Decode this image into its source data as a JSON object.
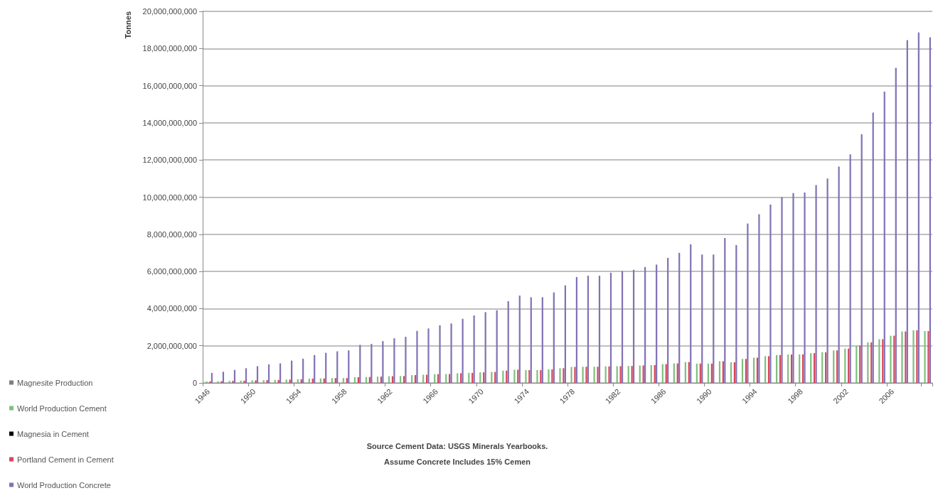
{
  "chart_data": {
    "type": "bar",
    "ylabel": "Tonnes",
    "annotations": [
      "Source Cement Data: USGS Minerals Yearbooks.",
      "Assume Concrete Includes 15% Cemen"
    ],
    "categories": [
      "1946",
      null,
      null,
      null,
      "1950",
      null,
      null,
      null,
      "1954",
      null,
      null,
      null,
      "1958",
      null,
      null,
      null,
      "1962",
      null,
      null,
      null,
      "1966",
      null,
      null,
      null,
      "1970",
      null,
      null,
      null,
      "1974",
      null,
      null,
      null,
      "1978",
      null,
      null,
      null,
      "1982",
      null,
      null,
      null,
      "1986",
      null,
      null,
      null,
      "1990",
      null,
      null,
      null,
      "1994",
      null,
      null,
      null,
      "1998",
      null,
      null,
      null,
      "2002",
      null,
      null,
      null,
      "2006",
      null,
      null,
      null
    ],
    "series": [
      {
        "name": "Magnesite Production",
        "color": "#7f7f7f",
        "values": [
          null,
          null,
          null,
          null,
          null,
          null,
          null,
          null,
          null,
          null,
          null,
          null,
          null,
          null,
          null,
          null,
          null,
          null,
          null,
          null,
          null,
          null,
          null,
          null,
          null,
          null,
          null,
          null,
          null,
          null,
          null,
          null,
          null,
          null,
          null,
          null,
          null,
          null,
          null,
          null,
          null,
          null,
          null,
          null,
          null,
          null,
          null,
          null,
          null,
          null,
          null,
          null,
          null,
          null,
          null,
          null,
          null,
          null,
          null,
          null,
          null,
          null,
          null,
          null
        ]
      },
      {
        "name": "World Production Cement",
        "color": "#7fbf7f",
        "values": [
          80000000,
          90000000,
          110000000,
          120000000,
          140000000,
          150000000,
          160000000,
          180000000,
          200000000,
          230000000,
          240000000,
          260000000,
          260000000,
          310000000,
          320000000,
          340000000,
          360000000,
          370000000,
          420000000,
          440000000,
          470000000,
          480000000,
          520000000,
          540000000,
          570000000,
          590000000,
          660000000,
          710000000,
          690000000,
          690000000,
          730000000,
          790000000,
          860000000,
          870000000,
          870000000,
          890000000,
          900000000,
          910000000,
          940000000,
          960000000,
          1010000000,
          1050000000,
          1120000000,
          1040000000,
          1040000000,
          1170000000,
          1110000000,
          1290000000,
          1360000000,
          1440000000,
          1500000000,
          1530000000,
          1540000000,
          1600000000,
          1650000000,
          1750000000,
          1850000000,
          2010000000,
          2180000000,
          2350000000,
          2540000000,
          2770000000,
          2830000000,
          2790000000
        ]
      },
      {
        "name": "Magnesia in Cement",
        "color": "#000000",
        "values": [
          null,
          null,
          null,
          null,
          null,
          null,
          null,
          null,
          null,
          null,
          null,
          null,
          null,
          null,
          null,
          null,
          null,
          null,
          null,
          null,
          null,
          null,
          null,
          null,
          null,
          null,
          null,
          null,
          null,
          null,
          null,
          null,
          null,
          null,
          null,
          null,
          null,
          null,
          null,
          null,
          null,
          null,
          null,
          null,
          null,
          null,
          null,
          null,
          null,
          null,
          null,
          null,
          null,
          null,
          null,
          null,
          null,
          null,
          null,
          null,
          null,
          null,
          null,
          null
        ]
      },
      {
        "name": "Portland Cement in Cement",
        "color": "#d9465a",
        "values": [
          80000000,
          90000000,
          110000000,
          120000000,
          140000000,
          150000000,
          160000000,
          180000000,
          200000000,
          230000000,
          240000000,
          260000000,
          260000000,
          310000000,
          320000000,
          340000000,
          360000000,
          370000000,
          420000000,
          440000000,
          470000000,
          480000000,
          520000000,
          540000000,
          570000000,
          590000000,
          660000000,
          710000000,
          690000000,
          690000000,
          730000000,
          790000000,
          860000000,
          870000000,
          870000000,
          890000000,
          900000000,
          910000000,
          940000000,
          960000000,
          1010000000,
          1050000000,
          1120000000,
          1040000000,
          1040000000,
          1170000000,
          1110000000,
          1290000000,
          1360000000,
          1440000000,
          1500000000,
          1530000000,
          1540000000,
          1600000000,
          1650000000,
          1750000000,
          1850000000,
          2010000000,
          2180000000,
          2350000000,
          2540000000,
          2770000000,
          2830000000,
          2790000000
        ]
      },
      {
        "name": "World Production Concrete",
        "color": "#8272b4",
        "values": [
          540000000,
          600000000,
          700000000,
          790000000,
          900000000,
          1000000000,
          1050000000,
          1200000000,
          1300000000,
          1500000000,
          1620000000,
          1700000000,
          1750000000,
          2050000000,
          2100000000,
          2250000000,
          2400000000,
          2480000000,
          2800000000,
          2930000000,
          3100000000,
          3200000000,
          3450000000,
          3630000000,
          3810000000,
          3910000000,
          4400000000,
          4700000000,
          4610000000,
          4610000000,
          4870000000,
          5250000000,
          5700000000,
          5770000000,
          5770000000,
          5930000000,
          6020000000,
          6090000000,
          6240000000,
          6370000000,
          6730000000,
          7000000000,
          7460000000,
          6910000000,
          6910000000,
          7800000000,
          7420000000,
          8580000000,
          9080000000,
          9600000000,
          10000000000,
          10220000000,
          10250000000,
          10650000000,
          11000000000,
          11640000000,
          12300000000,
          13380000000,
          14550000000,
          15680000000,
          16960000000,
          18450000000,
          18860000000,
          18600000000
        ]
      }
    ],
    "ylim": [
      0,
      20000000000
    ],
    "yticks": [
      {
        "value": 0,
        "label": "0"
      },
      {
        "value": 2000000000,
        "label": "2,000,000,000"
      },
      {
        "value": 4000000000,
        "label": "4,000,000,000"
      },
      {
        "value": 6000000000,
        "label": "6,000,000,000"
      },
      {
        "value": 8000000000,
        "label": "8,000,000,000"
      },
      {
        "value": 10000000000,
        "label": "10,000,000,000"
      },
      {
        "value": 12000000000,
        "label": "12,000,000,000"
      },
      {
        "value": 14000000000,
        "label": "14,000,000,000"
      },
      {
        "value": 16000000000,
        "label": "16,000,000,000"
      },
      {
        "value": 18000000000,
        "label": "18,000,000,000"
      },
      {
        "value": 20000000000,
        "label": "20,000,000,000"
      }
    ],
    "grid": "y",
    "legend": "bottom left"
  }
}
